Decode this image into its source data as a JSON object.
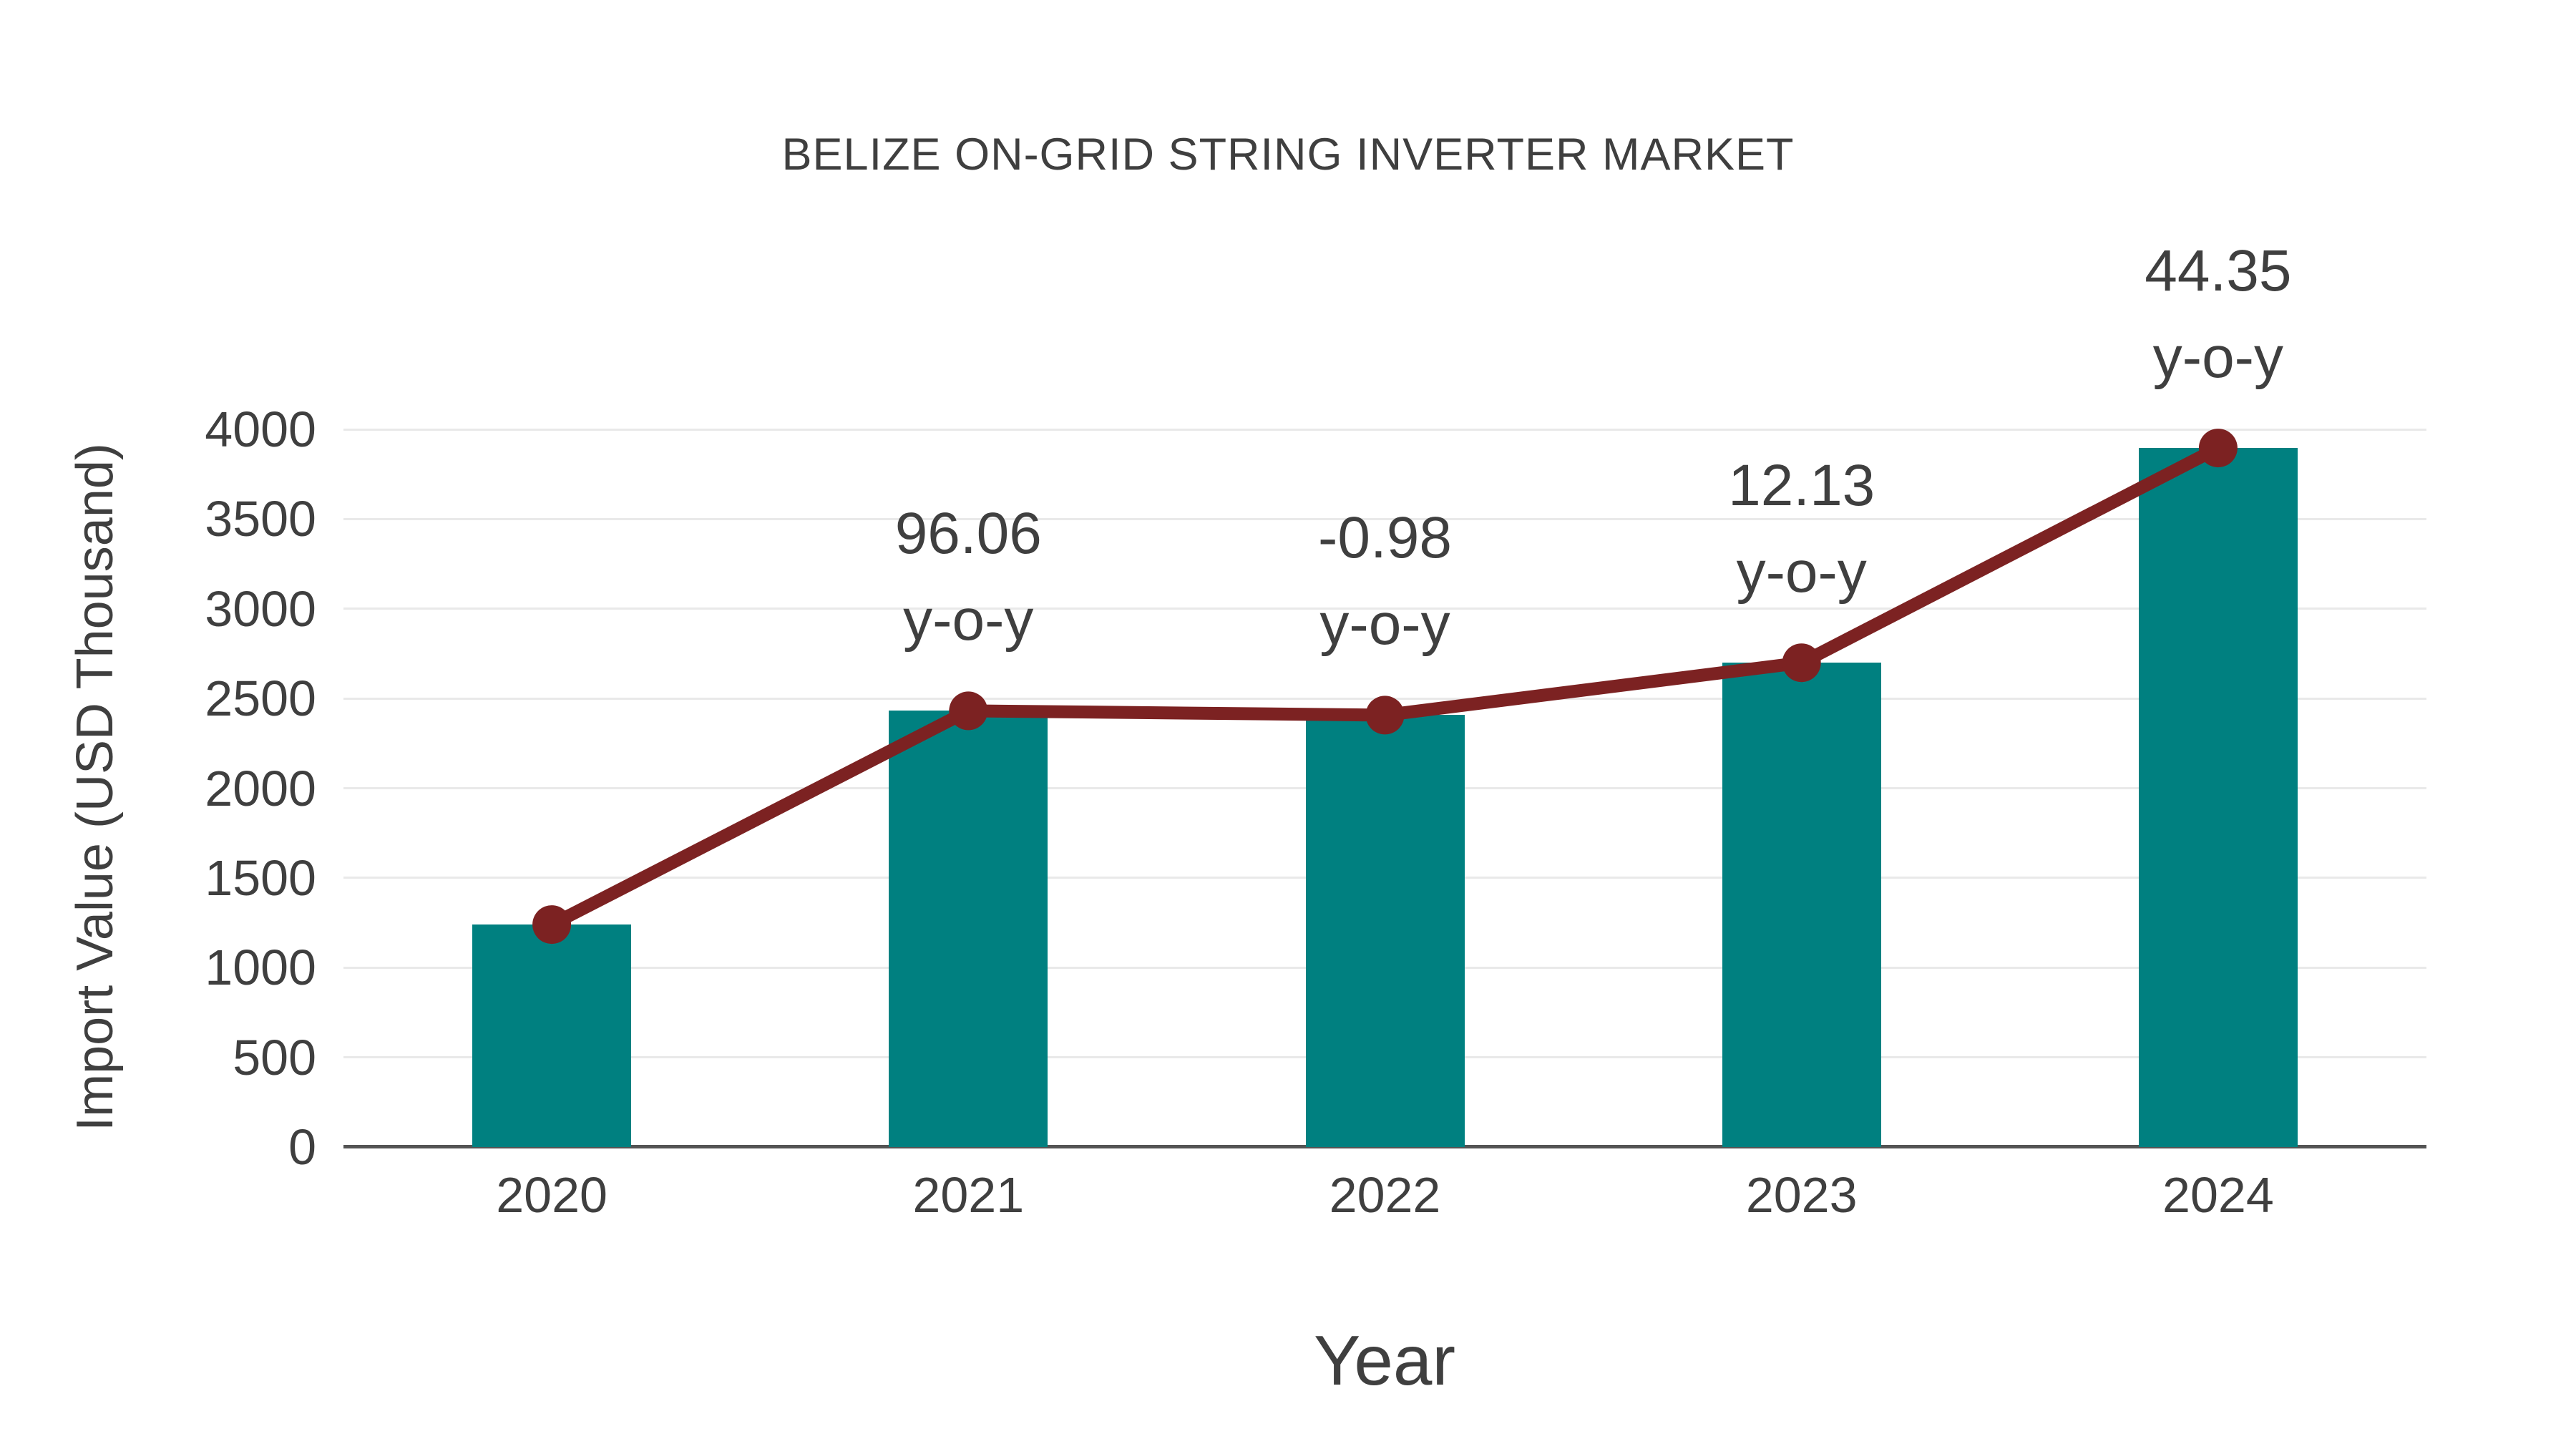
{
  "chart_data": {
    "type": "bar",
    "title": "BELIZE ON-GRID STRING INVERTER MARKET",
    "xlabel": "Year",
    "ylabel": "Import Value (USD Thousand)",
    "categories": [
      "2020",
      "2021",
      "2022",
      "2023",
      "2024"
    ],
    "series": [
      {
        "name": "Import Value (USD Thousand)",
        "type": "bar",
        "values": [
          1240,
          2431,
          2407,
          2699,
          3896
        ]
      },
      {
        "name": "y-o-y growth",
        "type": "line",
        "values": [
          1240,
          2431,
          2407,
          2699,
          3896
        ]
      }
    ],
    "annotations": [
      {
        "category": "2021",
        "value_label": "96.06",
        "suffix": "y-o-y"
      },
      {
        "category": "2022",
        "value_label": "-0.98",
        "suffix": "y-o-y"
      },
      {
        "category": "2023",
        "value_label": "12.13",
        "suffix": "y-o-y"
      },
      {
        "category": "2024",
        "value_label": "44.35",
        "suffix": "y-o-y"
      }
    ],
    "ylim": [
      0,
      4000
    ],
    "yticks": [
      0,
      500,
      1000,
      1500,
      2000,
      2500,
      3000,
      3500,
      4000
    ],
    "grid": "horizontal",
    "legend": "none",
    "colors": {
      "bar": "#008080",
      "line": "#7c2222",
      "marker": "#7c2222",
      "text": "#3f3f3f",
      "gridline": "#e9e9e9",
      "axis": "#545454",
      "background": "#ffffff"
    }
  }
}
